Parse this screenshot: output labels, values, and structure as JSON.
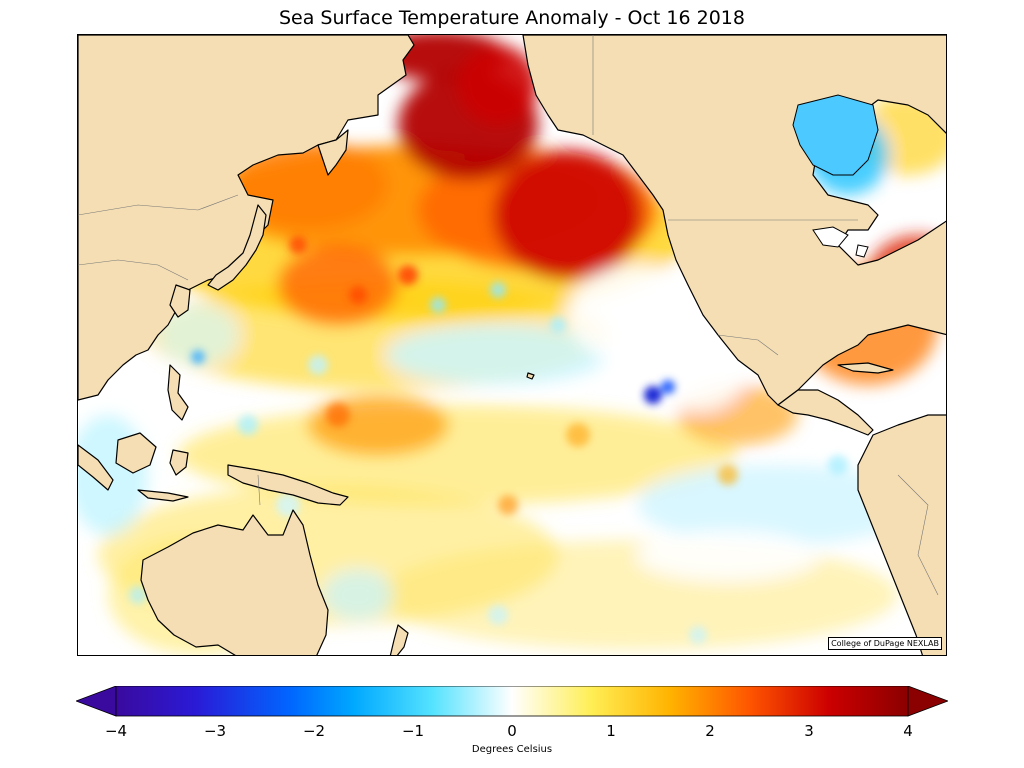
{
  "title": "Sea Surface Temperature Anomaly - Oct 16 2018",
  "credit": "College of DuPage NEXLAB",
  "colorbar": {
    "label": "Degrees Celsius",
    "min": -4,
    "max": 4,
    "ticks": [
      "−4",
      "−3",
      "−2",
      "−1",
      "0",
      "1",
      "2",
      "3",
      "4"
    ],
    "extend": "both"
  },
  "colors": {
    "land": "#f5deb3",
    "ocean_neutral": "#ffffff",
    "cold_extreme": "#3a0a9e",
    "warm_extreme": "#8b0000"
  }
}
